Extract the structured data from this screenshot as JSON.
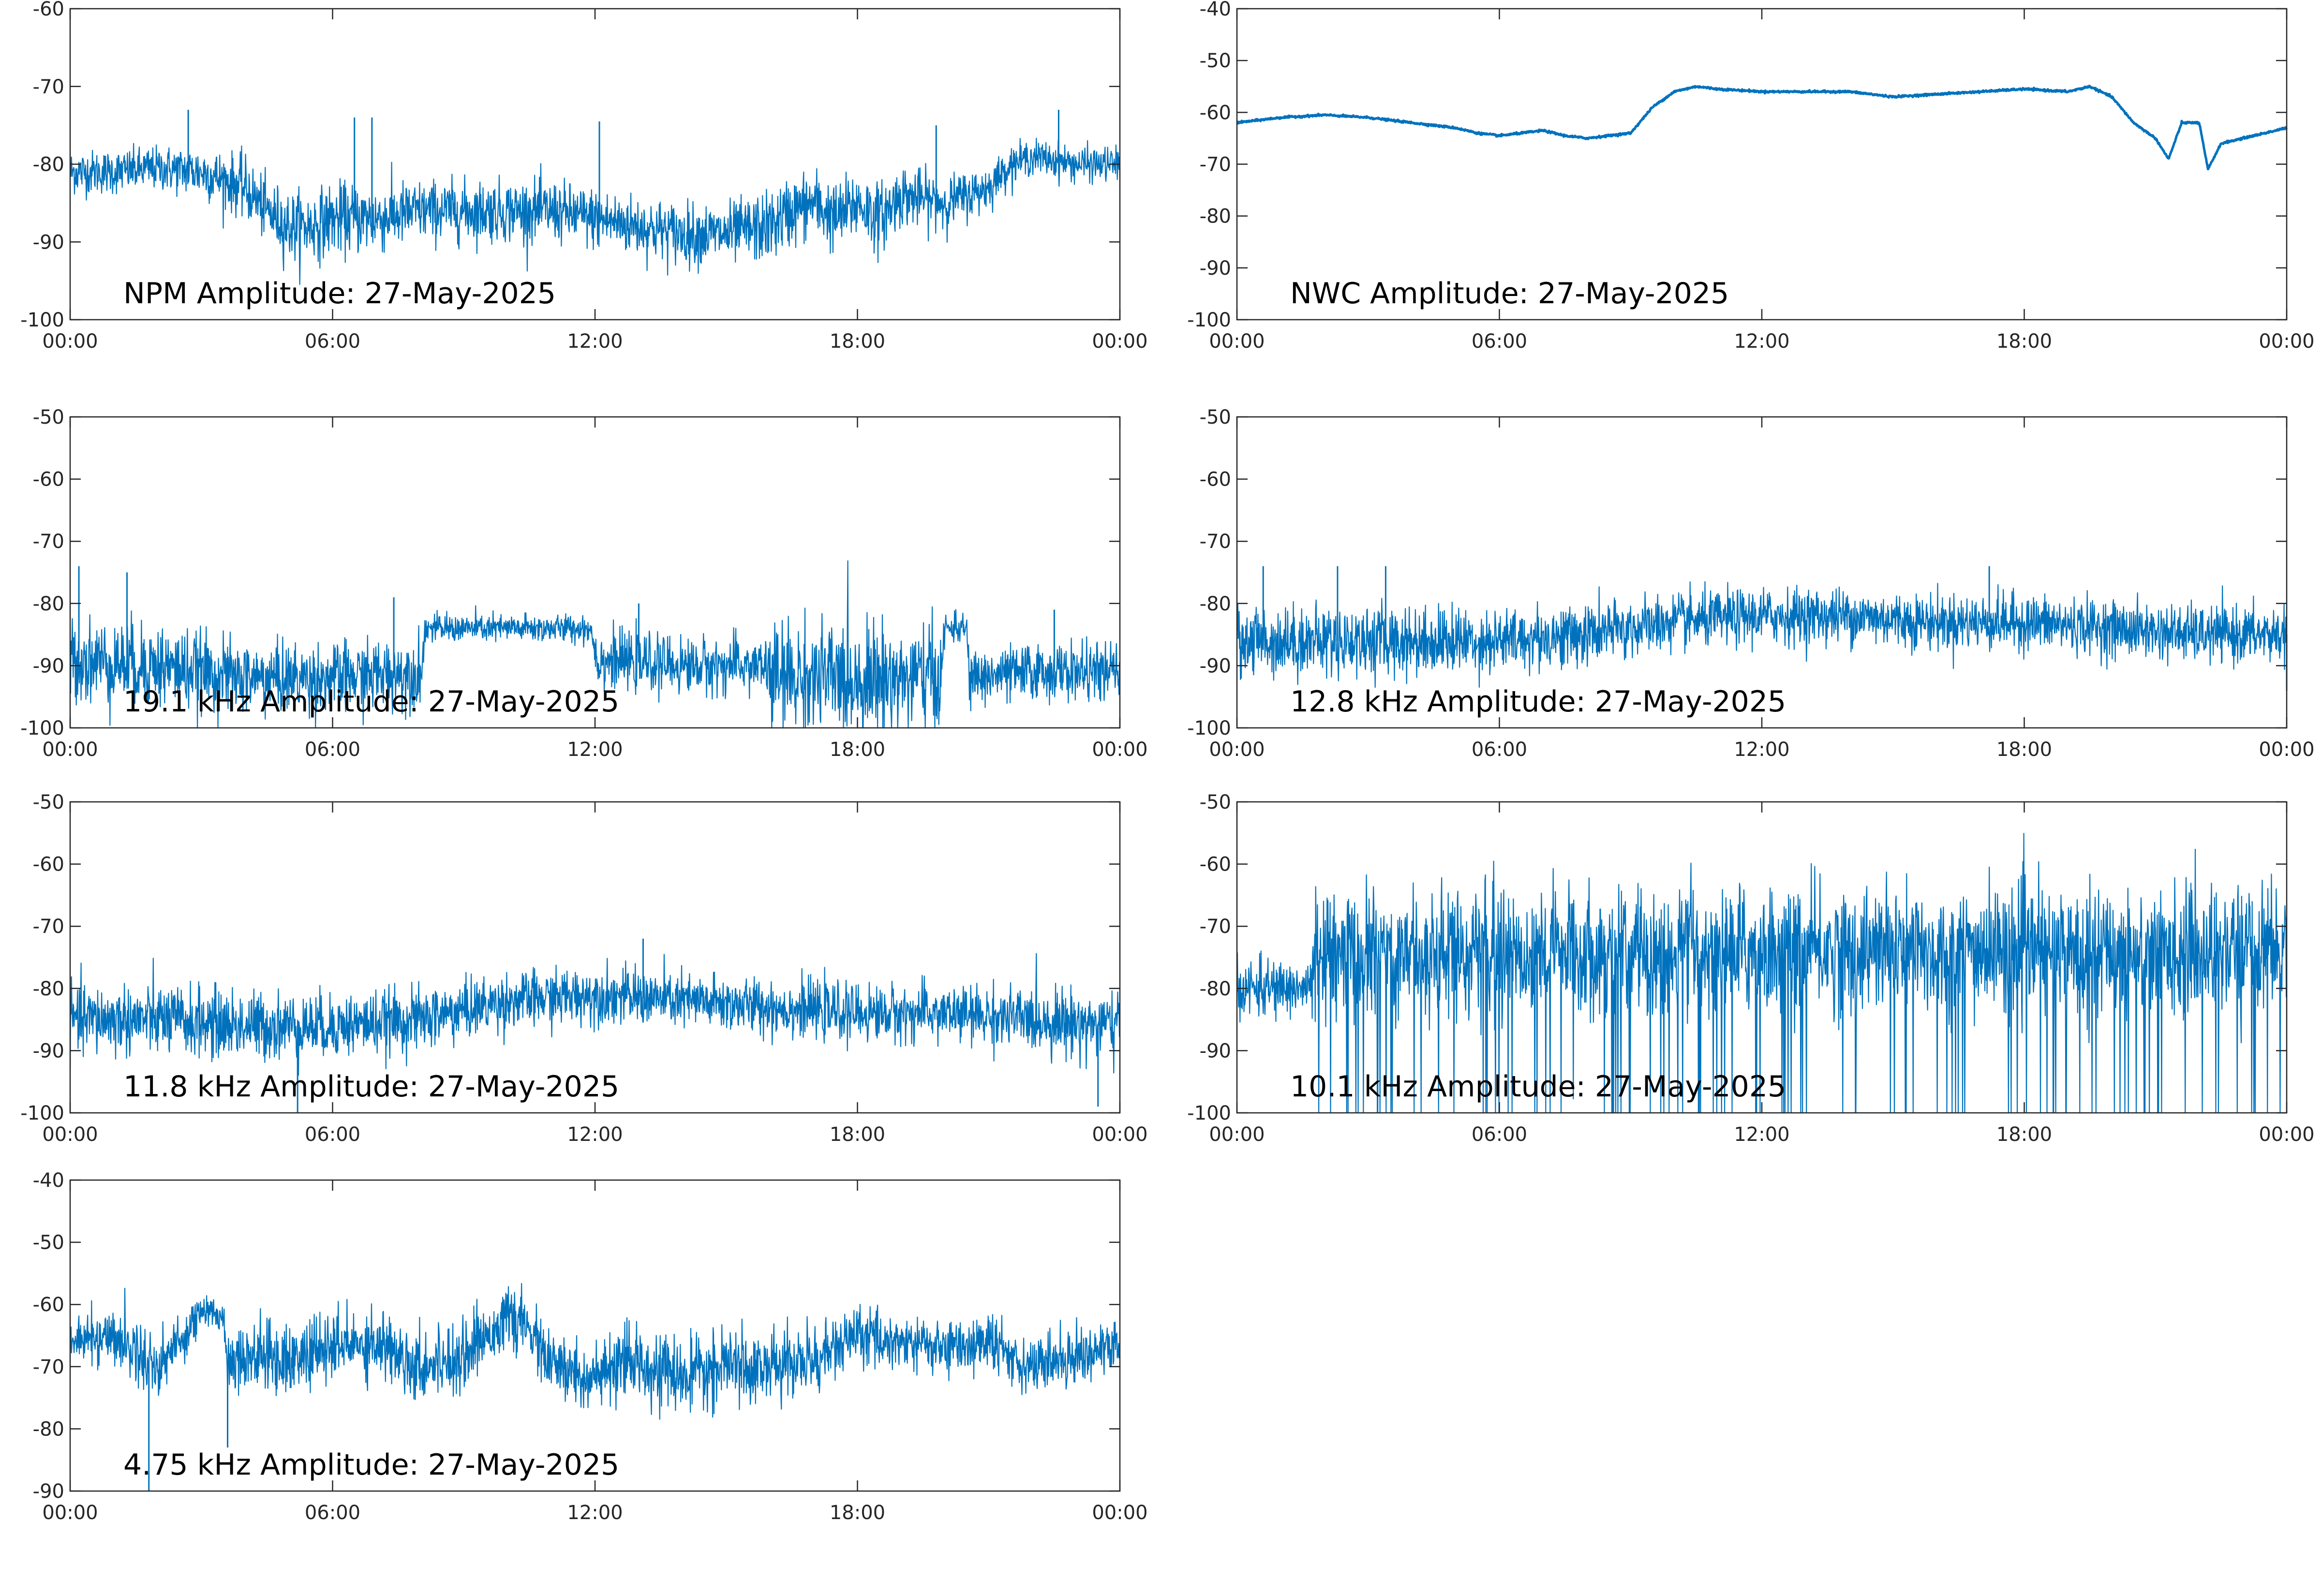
{
  "figure": {
    "line_color": "#0072bd",
    "axis_color": "#262626",
    "background": "#ffffff"
  },
  "chart_data": [
    {
      "type": "line",
      "title": "NPM Amplitude: 27-May-2025",
      "xlabel": "",
      "ylabel": "",
      "x_ticks": [
        "00:00",
        "06:00",
        "12:00",
        "18:00",
        "00:00"
      ],
      "xlim_hours": [
        0,
        24
      ],
      "ylim": [
        -100,
        -60
      ],
      "y_ticks": [
        -60,
        -70,
        -80,
        -90,
        -100
      ],
      "grid": false,
      "series": [
        {
          "x_hours": [
            0,
            1,
            2,
            3,
            4,
            4.5,
            5,
            5.5,
            6,
            7,
            8,
            9,
            10,
            11,
            12,
            13,
            14,
            15,
            16,
            16.5,
            17,
            17.5,
            18,
            18.5,
            19,
            20,
            21,
            21.5,
            22,
            23,
            24
          ],
          "values": [
            -81,
            -81,
            -80.5,
            -81,
            -83,
            -86,
            -88,
            -88,
            -87,
            -87,
            -86,
            -86,
            -86,
            -86,
            -87,
            -88,
            -89,
            -89,
            -88,
            -86,
            -85,
            -87,
            -85,
            -87,
            -84,
            -85,
            -83,
            -80,
            -79,
            -80,
            -80
          ],
          "spread": [
            2.5,
            2.5,
            2.5,
            3,
            3.5,
            3.5,
            4,
            4,
            4,
            4,
            3.5,
            3.5,
            3.5,
            3.5,
            3.5,
            3.5,
            3.5,
            3.5,
            4,
            4,
            4,
            4,
            4,
            4,
            3.5,
            3,
            2.5,
            2,
            2,
            2,
            2
          ]
        }
      ],
      "spikes": [
        {
          "x_hours": 2.7,
          "value": -73
        },
        {
          "x_hours": 6.5,
          "value": -74
        },
        {
          "x_hours": 6.9,
          "value": -74
        },
        {
          "x_hours": 12.1,
          "value": -74.5
        },
        {
          "x_hours": 19.8,
          "value": -75
        },
        {
          "x_hours": 22.6,
          "value": -73
        }
      ]
    },
    {
      "type": "line",
      "title": "NWC Amplitude: 27-May-2025",
      "xlabel": "",
      "ylabel": "",
      "x_ticks": [
        "00:00",
        "06:00",
        "12:00",
        "18:00",
        "00:00"
      ],
      "xlim_hours": [
        0,
        24
      ],
      "ylim": [
        -100,
        -40
      ],
      "y_ticks": [
        -40,
        -50,
        -60,
        -70,
        -80,
        -90,
        -100
      ],
      "grid": false,
      "series": [
        {
          "x_hours": [
            0,
            1,
            2,
            3,
            4,
            5,
            5.5,
            6,
            6.5,
            7,
            7.5,
            8,
            8.5,
            9,
            9.5,
            10,
            10.5,
            11,
            12,
            13,
            14,
            15,
            16,
            17,
            18,
            19,
            19.5,
            20,
            20.5,
            21,
            21.3,
            21.6,
            22,
            22.2,
            22.5,
            23,
            24
          ],
          "values": [
            -62,
            -61,
            -60.5,
            -61,
            -62,
            -63,
            -64,
            -64.5,
            -64,
            -63.5,
            -64.5,
            -65,
            -64.5,
            -64,
            -59,
            -56,
            -55,
            -55.5,
            -56,
            -56,
            -56,
            -57,
            -56.5,
            -56,
            -55.5,
            -56,
            -55,
            -57,
            -62,
            -65,
            -69,
            -62,
            -62,
            -71,
            -66,
            -65,
            -63
          ],
          "spread": [
            0.5,
            0.5,
            0.5,
            0.5,
            0.5,
            0.5,
            0.5,
            0.5,
            0.5,
            0.5,
            0.5,
            0.5,
            0.5,
            0.5,
            0.5,
            0.5,
            0.5,
            0.5,
            0.5,
            0.5,
            0.5,
            0.5,
            0.5,
            0.5,
            0.5,
            0.5,
            0.5,
            0.5,
            0.5,
            0.5,
            0.5,
            0.5,
            0.5,
            0.5,
            0.5,
            0.5,
            0.5
          ]
        }
      ],
      "spikes": []
    },
    {
      "type": "line",
      "title": "19.1 kHz Amplitude: 27-May-2025",
      "xlabel": "",
      "ylabel": "",
      "x_ticks": [
        "00:00",
        "06:00",
        "12:00",
        "18:00",
        "00:00"
      ],
      "xlim_hours": [
        0,
        24
      ],
      "ylim": [
        -100,
        -50
      ],
      "y_ticks": [
        -50,
        -60,
        -70,
        -80,
        -90,
        -100
      ],
      "grid": false,
      "series": [
        {
          "x_hours": [
            0,
            2,
            4,
            6,
            8.05,
            8.1,
            10,
            11.9,
            12.05,
            14,
            15.9,
            16,
            18,
            19.9,
            20.0,
            20.5,
            20.55,
            22,
            24
          ],
          "values": [
            -89,
            -90,
            -92,
            -92,
            -91,
            -84,
            -84,
            -84,
            -89,
            -90,
            -90,
            -92,
            -92,
            -92,
            -84,
            -84,
            -92,
            -91,
            -91
          ],
          "spread": [
            6,
            6,
            5,
            5,
            5,
            2,
            2,
            2,
            4,
            4,
            4,
            8,
            8,
            8,
            2,
            2,
            4,
            4,
            4
          ]
        }
      ],
      "spikes": [
        {
          "x_hours": 0.2,
          "value": -74
        },
        {
          "x_hours": 1.3,
          "value": -75
        },
        {
          "x_hours": 7.4,
          "value": -79
        },
        {
          "x_hours": 13.0,
          "value": -80
        },
        {
          "x_hours": 22.5,
          "value": -81
        }
      ]
    },
    {
      "type": "line",
      "title": "12.8 kHz Amplitude: 27-May-2025",
      "xlabel": "",
      "ylabel": "",
      "x_ticks": [
        "00:00",
        "06:00",
        "12:00",
        "18:00",
        "00:00"
      ],
      "xlim_hours": [
        0,
        24
      ],
      "ylim": [
        -100,
        -50
      ],
      "y_ticks": [
        -50,
        -60,
        -70,
        -80,
        -90,
        -100
      ],
      "grid": false,
      "series": [
        {
          "x_hours": [
            0,
            2,
            4,
            6,
            8,
            10,
            12,
            14,
            16,
            18,
            20,
            22,
            24
          ],
          "values": [
            -86,
            -86,
            -86,
            -86,
            -85,
            -83,
            -82,
            -82,
            -83,
            -83,
            -84,
            -85,
            -85
          ],
          "spread": [
            5,
            5,
            5,
            4.5,
            4.5,
            4,
            4,
            4,
            4,
            4,
            4,
            4,
            4
          ]
        }
      ],
      "spikes": [
        {
          "x_hours": 0.6,
          "value": -74
        },
        {
          "x_hours": 2.3,
          "value": -74
        },
        {
          "x_hours": 3.4,
          "value": -74
        },
        {
          "x_hours": 17.2,
          "value": -74
        },
        {
          "x_hours": 24,
          "value": -94
        }
      ]
    },
    {
      "type": "line",
      "title": "11.8 kHz Amplitude: 27-May-2025",
      "xlabel": "",
      "ylabel": "",
      "x_ticks": [
        "00:00",
        "06:00",
        "12:00",
        "18:00",
        "00:00"
      ],
      "xlim_hours": [
        0,
        24
      ],
      "ylim": [
        -100,
        -50
      ],
      "y_ticks": [
        -50,
        -60,
        -70,
        -80,
        -90,
        -100
      ],
      "grid": false,
      "series": [
        {
          "x_hours": [
            0,
            2,
            4,
            6,
            8,
            10,
            12,
            14,
            16,
            18,
            20,
            22,
            24
          ],
          "values": [
            -85,
            -85,
            -86,
            -86,
            -85,
            -82,
            -81,
            -82,
            -83,
            -84,
            -84,
            -85,
            -86
          ],
          "spread": [
            5,
            5,
            5,
            4.5,
            4.5,
            4,
            4,
            4,
            4,
            4,
            4,
            4.5,
            5
          ]
        }
      ],
      "spikes": [
        {
          "x_hours": 13.1,
          "value": -72
        },
        {
          "x_hours": 23.5,
          "value": -99
        },
        {
          "x_hours": 5.2,
          "value": -100
        }
      ]
    },
    {
      "type": "line",
      "title": "10.1 kHz Amplitude: 27-May-2025",
      "xlabel": "",
      "ylabel": "",
      "x_ticks": [
        "00:00",
        "06:00",
        "12:00",
        "18:00",
        "00:00"
      ],
      "xlim_hours": [
        0,
        24
      ],
      "ylim": [
        -100,
        -50
      ],
      "y_ticks": [
        -50,
        -60,
        -70,
        -80,
        -90,
        -100
      ],
      "grid": false,
      "series": [
        {
          "x_hours": [
            0,
            1,
            1.7,
            1.8,
            4,
            6,
            8,
            10,
            12,
            14,
            16,
            18,
            20,
            22,
            24
          ],
          "values": [
            -80,
            -80,
            -80,
            -75,
            -74,
            -74,
            -74,
            -74,
            -74,
            -74,
            -74,
            -74,
            -74,
            -74,
            -73
          ],
          "spread": [
            4,
            4,
            4,
            9,
            9,
            9,
            9,
            9,
            9,
            9,
            9,
            9,
            9,
            9,
            9
          ]
        }
      ],
      "dropouts": {
        "from_hours": 1.8,
        "to_hours": 24,
        "value": -100
      }
    },
    {
      "type": "line",
      "title": "4.75 kHz Amplitude: 27-May-2025",
      "xlabel": "",
      "ylabel": "",
      "x_ticks": [
        "00:00",
        "06:00",
        "12:00",
        "18:00",
        "00:00"
      ],
      "xlim_hours": [
        0,
        24
      ],
      "ylim": [
        -90,
        -40
      ],
      "y_ticks": [
        -40,
        -50,
        -60,
        -70,
        -80,
        -90
      ],
      "grid": false,
      "series": [
        {
          "x_hours": [
            0,
            1,
            2,
            2.5,
            3,
            3.5,
            3.6,
            4,
            5,
            6,
            7,
            8,
            9,
            10,
            10.5,
            11,
            12,
            13,
            14,
            15,
            16,
            17,
            18,
            19,
            20,
            21,
            22,
            23,
            24
          ],
          "values": [
            -66,
            -65,
            -70,
            -66,
            -61,
            -62,
            -69,
            -68,
            -69,
            -67,
            -66,
            -70,
            -68,
            -62,
            -64,
            -70,
            -72,
            -69,
            -72,
            -70,
            -70,
            -69,
            -65,
            -66,
            -67,
            -66,
            -70,
            -68,
            -67
          ],
          "spread": [
            3,
            4,
            5,
            4,
            2.5,
            2.5,
            5,
            5,
            5,
            5,
            5,
            5,
            5,
            4,
            4,
            5,
            5,
            5,
            5,
            5,
            5,
            5,
            4,
            4,
            4,
            4,
            4,
            4,
            4
          ]
        }
      ],
      "spikes": [
        {
          "x_hours": 1.8,
          "value": -90
        },
        {
          "x_hours": 3.6,
          "value": -83
        }
      ]
    }
  ]
}
